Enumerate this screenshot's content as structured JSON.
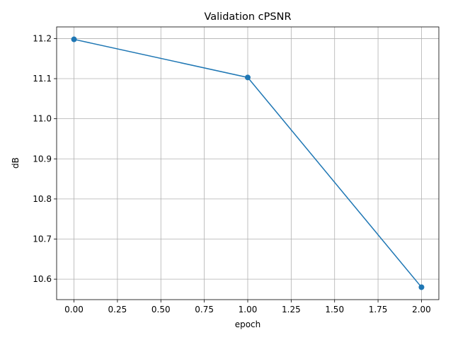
{
  "chart_data": {
    "type": "line",
    "title": "Validation cPSNR",
    "xlabel": "epoch",
    "ylabel": "dB",
    "grid": true,
    "marker": "circle",
    "xlim": [
      -0.1,
      2.1
    ],
    "ylim": [
      10.549,
      11.229
    ],
    "x_ticks": [
      0.0,
      0.25,
      0.5,
      0.75,
      1.0,
      1.25,
      1.5,
      1.75,
      2.0
    ],
    "x_tick_labels": [
      "0.00",
      "0.25",
      "0.50",
      "0.75",
      "1.00",
      "1.25",
      "1.50",
      "1.75",
      "2.00"
    ],
    "y_ticks": [
      10.6,
      10.7,
      10.8,
      10.9,
      11.0,
      11.1,
      11.2
    ],
    "y_tick_labels": [
      "10.6",
      "10.7",
      "10.8",
      "10.9",
      "11.0",
      "11.1",
      "11.2"
    ],
    "x": [
      0,
      1,
      2
    ],
    "series": [
      {
        "values": [
          11.198,
          11.103,
          10.58
        ],
        "color": "#1f77b4"
      }
    ]
  }
}
